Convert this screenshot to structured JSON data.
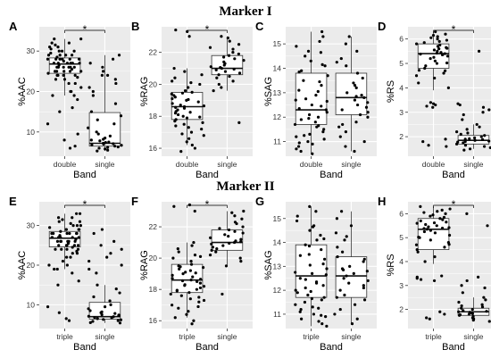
{
  "sections": [
    {
      "title": "Marker I"
    },
    {
      "title": "Marker II"
    }
  ],
  "chart_data": [
    {
      "panel": "A",
      "type": "box",
      "xlabel": "Band",
      "ylabel": "%AAC",
      "ylim": [
        4,
        36
      ],
      "yticks": [
        10,
        20,
        30
      ],
      "categories": [
        "double",
        "single"
      ],
      "significance": "*",
      "boxes": [
        {
          "q1": 24.5,
          "median": 26.8,
          "q3": 28.3,
          "lower": 19,
          "upper": 33
        },
        {
          "q1": 6.5,
          "median": 7.2,
          "q3": 14.8,
          "lower": 5.3,
          "upper": 29
        }
      ],
      "points": [
        [
          28,
          27,
          29,
          26,
          25,
          31,
          33,
          32,
          30,
          28,
          27,
          26,
          25,
          24,
          23,
          22,
          21,
          20,
          19,
          18,
          28,
          29,
          27,
          26,
          30,
          31,
          28,
          27,
          26,
          25,
          24,
          29,
          30,
          27,
          26,
          28,
          25,
          24,
          23,
          22,
          32,
          33,
          29,
          28,
          27,
          26,
          25,
          24,
          20,
          19,
          16,
          15,
          12,
          9.5,
          8,
          6.5,
          6,
          25.5,
          27.5,
          29.5,
          28.5,
          26.5,
          24.5,
          23.5,
          30.5,
          31.5
        ],
        [
          29,
          28,
          27,
          24,
          22,
          20,
          17,
          15,
          14,
          13,
          12,
          11,
          10,
          9,
          8.5,
          8,
          7.8,
          7.5,
          7.2,
          7,
          6.8,
          6.5,
          6.3,
          6,
          5.8,
          5.5,
          5.3,
          6.2,
          7.4,
          8.2,
          9.5,
          6.7,
          7.1,
          24,
          25,
          26,
          23,
          21,
          19
        ]
      ]
    },
    {
      "panel": "B",
      "type": "box",
      "xlabel": "Band",
      "ylabel": "%RAG",
      "ylim": [
        15.5,
        23.6
      ],
      "yticks": [
        16,
        18,
        20,
        22
      ],
      "categories": [
        "double",
        "single"
      ],
      "significance": "*",
      "boxes": [
        {
          "q1": 17.8,
          "median": 18.6,
          "q3": 19.5,
          "lower": 16.2,
          "upper": 21.0
        },
        {
          "q1": 20.6,
          "median": 21.0,
          "q3": 21.8,
          "lower": 19.6,
          "upper": 23.0
        }
      ],
      "points": [
        [
          23.4,
          23.3,
          23.0,
          21.0,
          20.8,
          20.6,
          20.4,
          20.2,
          20.0,
          19.8,
          19.6,
          19.5,
          19.4,
          19.3,
          19.2,
          19.1,
          19.0,
          18.9,
          18.8,
          18.7,
          18.6,
          18.5,
          18.4,
          18.3,
          18.2,
          18.1,
          18.0,
          17.9,
          17.8,
          17.7,
          17.6,
          17.5,
          17.4,
          17.3,
          17.2,
          17.0,
          16.8,
          16.6,
          16.4,
          16.2,
          16.0,
          15.8,
          18.65,
          18.55,
          19.05,
          18.25,
          17.95,
          19.45,
          20.1,
          16.9
        ],
        [
          23.0,
          22.9,
          22.7,
          22.5,
          22.3,
          22.2,
          22.0,
          21.9,
          21.8,
          21.7,
          21.6,
          21.5,
          21.4,
          21.3,
          21.2,
          21.1,
          21.0,
          20.9,
          20.8,
          20.7,
          20.6,
          20.5,
          20.4,
          20.2,
          20.0,
          19.8,
          19.6,
          17.6,
          21.05,
          20.95
        ]
      ]
    },
    {
      "panel": "C",
      "type": "box",
      "xlabel": "Band",
      "ylabel": "%SAG",
      "ylim": [
        10.4,
        15.7
      ],
      "yticks": [
        11,
        12,
        13,
        14,
        15
      ],
      "categories": [
        "double",
        "single"
      ],
      "significance": "",
      "boxes": [
        {
          "q1": 11.7,
          "median": 12.3,
          "q3": 13.8,
          "lower": 10.5,
          "upper": 15.5
        },
        {
          "q1": 12.1,
          "median": 12.8,
          "q3": 13.8,
          "lower": 10.6,
          "upper": 15.3
        }
      ],
      "points": [
        [
          15.5,
          15.3,
          15.1,
          14.9,
          14.7,
          14.5,
          14.3,
          14.1,
          13.9,
          13.7,
          13.5,
          13.3,
          13.1,
          12.9,
          12.7,
          12.5,
          12.3,
          12.2,
          12.1,
          12.0,
          11.9,
          11.8,
          11.7,
          11.6,
          11.5,
          11.4,
          11.3,
          11.2,
          11.1,
          11.0,
          10.9,
          10.8,
          10.7,
          10.6,
          10.5,
          12.35,
          12.45,
          13.05,
          13.85,
          14.15,
          11.95,
          11.25,
          12.75,
          13.45,
          14.65,
          10.95,
          11.65,
          12.65
        ],
        [
          15.3,
          15.0,
          14.7,
          14.4,
          14.1,
          13.8,
          13.6,
          13.4,
          13.2,
          13.0,
          12.9,
          12.8,
          12.7,
          12.6,
          12.5,
          12.4,
          12.3,
          12.2,
          12.1,
          12.0,
          11.8,
          11.6,
          11.4,
          11.2,
          11.0,
          10.8,
          10.6,
          13.3,
          12.85,
          14.25,
          11.7
        ]
      ]
    },
    {
      "panel": "D",
      "type": "box",
      "xlabel": "Band",
      "ylabel": "%RS",
      "ylim": [
        1.2,
        6.5
      ],
      "yticks": [
        2,
        3,
        4,
        5,
        6
      ],
      "categories": [
        "double",
        "single"
      ],
      "significance": "*",
      "boxes": [
        {
          "q1": 4.8,
          "median": 5.4,
          "q3": 5.8,
          "lower": 3.9,
          "upper": 6.3
        },
        {
          "q1": 1.7,
          "median": 1.85,
          "q3": 2.05,
          "lower": 1.5,
          "upper": 2.5
        }
      ],
      "points": [
        [
          6.3,
          6.2,
          6.15,
          6.1,
          6.05,
          6.0,
          5.95,
          5.9,
          5.85,
          5.8,
          5.75,
          5.7,
          5.65,
          5.6,
          5.55,
          5.5,
          5.45,
          5.4,
          5.35,
          5.3,
          5.25,
          5.2,
          5.1,
          5.0,
          4.9,
          4.8,
          4.7,
          4.6,
          4.5,
          4.4,
          4.2,
          4.0,
          3.4,
          3.35,
          3.3,
          3.25,
          3.2,
          1.9,
          1.8,
          1.65,
          1.6,
          5.42,
          5.38,
          5.62,
          5.02,
          4.72
        ],
        [
          5.5,
          3.35,
          3.3,
          3.2,
          3.1,
          3.0,
          2.9,
          2.7,
          2.5,
          2.4,
          2.3,
          2.2,
          2.1,
          2.05,
          2.0,
          1.95,
          1.9,
          1.88,
          1.85,
          1.82,
          1.8,
          1.75,
          1.7,
          1.65,
          1.6,
          1.55,
          1.5,
          1.45,
          1.92,
          1.78,
          2.15
        ]
      ]
    },
    {
      "panel": "E",
      "type": "box",
      "xlabel": "Band",
      "ylabel": "%AAC",
      "ylim": [
        4,
        36
      ],
      "yticks": [
        10,
        20,
        30
      ],
      "categories": [
        "triple",
        "single"
      ],
      "significance": "*",
      "boxes": [
        {
          "q1": 24.6,
          "median": 26.8,
          "q3": 28.5,
          "lower": 19,
          "upper": 33
        },
        {
          "q1": 6.4,
          "median": 7.0,
          "q3": 10.6,
          "lower": 5.4,
          "upper": 15
        }
      ],
      "points": [
        [
          28,
          27,
          29,
          26,
          25,
          31,
          33,
          32,
          30,
          28,
          27,
          26,
          25,
          24,
          23,
          22,
          21,
          20,
          19,
          18,
          28,
          29,
          27,
          26,
          30,
          31,
          28,
          27,
          26,
          25,
          24,
          29,
          30,
          27,
          26,
          28,
          25,
          24,
          23,
          22,
          32,
          33,
          29,
          28,
          27,
          26,
          25,
          24,
          20,
          19,
          16,
          15,
          9.5,
          8,
          6.5,
          6,
          25.5,
          27.5,
          29.5,
          28.5,
          26.5,
          24.5,
          23.5,
          30.5,
          31.5
        ],
        [
          29,
          28,
          26,
          25,
          22,
          20,
          18,
          15,
          14,
          13,
          12,
          11,
          10,
          9,
          8.5,
          8,
          7.8,
          7.5,
          7.2,
          7,
          6.8,
          6.5,
          6.3,
          6,
          5.8,
          5.5,
          5.4,
          6.2,
          7.4,
          8.2,
          9.5,
          6.7,
          7.1,
          24,
          23,
          21,
          19
        ]
      ]
    },
    {
      "panel": "F",
      "type": "box",
      "xlabel": "Band",
      "ylabel": "%RAG",
      "ylim": [
        15.5,
        23.6
      ],
      "yticks": [
        16,
        18,
        20,
        22
      ],
      "categories": [
        "triple",
        "single"
      ],
      "significance": "*",
      "boxes": [
        {
          "q1": 17.8,
          "median": 18.6,
          "q3": 19.6,
          "lower": 16.2,
          "upper": 21.0
        },
        {
          "q1": 20.5,
          "median": 21.0,
          "q3": 21.8,
          "lower": 19.5,
          "upper": 23.0
        }
      ],
      "points": [
        [
          23.4,
          23.3,
          23.0,
          21.0,
          20.8,
          20.6,
          20.4,
          20.2,
          20.0,
          19.8,
          19.6,
          19.5,
          19.4,
          19.3,
          19.2,
          19.1,
          19.0,
          18.9,
          18.8,
          18.7,
          18.6,
          18.5,
          18.4,
          18.3,
          18.2,
          18.1,
          18.0,
          17.9,
          17.8,
          17.7,
          17.6,
          17.5,
          17.4,
          17.3,
          17.2,
          17.0,
          16.8,
          16.6,
          16.4,
          16.2,
          16.0,
          15.8,
          18.65,
          18.55,
          19.05,
          18.25,
          17.95,
          19.45,
          20.1,
          16.9
        ],
        [
          23.0,
          22.9,
          22.7,
          22.5,
          22.3,
          22.2,
          22.0,
          21.9,
          21.8,
          21.7,
          21.6,
          21.5,
          21.4,
          21.3,
          21.2,
          21.1,
          21.0,
          20.9,
          20.8,
          20.7,
          20.6,
          20.5,
          20.4,
          20.2,
          20.0,
          19.8,
          19.5,
          17.7,
          21.05,
          20.95
        ]
      ]
    },
    {
      "panel": "G",
      "type": "box",
      "xlabel": "Band",
      "ylabel": "%SAG",
      "ylim": [
        10.4,
        15.7
      ],
      "yticks": [
        11,
        12,
        13,
        14,
        15
      ],
      "categories": [
        "triple",
        "single"
      ],
      "significance": "",
      "boxes": [
        {
          "q1": 11.7,
          "median": 12.6,
          "q3": 13.9,
          "lower": 10.5,
          "upper": 15.5
        },
        {
          "q1": 11.7,
          "median": 12.6,
          "q3": 13.4,
          "lower": 10.6,
          "upper": 15.3
        }
      ],
      "points": [
        [
          15.5,
          15.3,
          15.1,
          14.9,
          14.7,
          14.5,
          14.3,
          14.1,
          13.9,
          13.7,
          13.5,
          13.3,
          13.1,
          12.9,
          12.7,
          12.5,
          12.3,
          12.2,
          12.1,
          12.0,
          11.9,
          11.8,
          11.7,
          11.6,
          11.5,
          11.4,
          11.3,
          11.2,
          11.1,
          11.0,
          10.9,
          10.8,
          10.7,
          10.6,
          10.5,
          12.35,
          12.45,
          13.05,
          13.85,
          14.15,
          11.95,
          11.25,
          12.75,
          13.45,
          14.65,
          10.95,
          11.65,
          12.65
        ],
        [
          15.3,
          15.0,
          14.7,
          14.4,
          14.1,
          13.8,
          13.6,
          13.4,
          13.2,
          13.0,
          12.9,
          12.8,
          12.7,
          12.6,
          12.5,
          12.4,
          12.3,
          12.2,
          12.1,
          12.0,
          11.8,
          11.6,
          11.4,
          11.2,
          11.0,
          10.8,
          10.6,
          13.3,
          12.85,
          14.25,
          11.7
        ]
      ]
    },
    {
      "panel": "H",
      "type": "box",
      "xlabel": "Band",
      "ylabel": "%RS",
      "ylim": [
        1.2,
        6.5
      ],
      "yticks": [
        2,
        3,
        4,
        5,
        6
      ],
      "categories": [
        "triple",
        "single"
      ],
      "significance": "*",
      "boxes": [
        {
          "q1": 4.5,
          "median": 5.35,
          "q3": 5.8,
          "lower": 3.9,
          "upper": 6.3
        },
        {
          "q1": 1.75,
          "median": 1.9,
          "q3": 2.05,
          "lower": 1.5,
          "upper": 2.5
        }
      ],
      "points": [
        [
          6.3,
          6.2,
          6.15,
          6.1,
          6.05,
          6.0,
          5.95,
          5.9,
          5.85,
          5.8,
          5.75,
          5.7,
          5.65,
          5.6,
          5.55,
          5.5,
          5.45,
          5.4,
          5.35,
          5.3,
          5.25,
          5.2,
          5.1,
          5.0,
          4.9,
          4.8,
          4.7,
          4.6,
          4.5,
          4.4,
          4.2,
          4.0,
          3.4,
          3.35,
          3.3,
          3.25,
          3.2,
          1.9,
          1.8,
          1.65,
          1.6,
          5.42,
          5.38,
          5.62,
          5.02,
          4.72
        ],
        [
          6.0,
          5.5,
          3.35,
          3.2,
          3.0,
          2.9,
          2.7,
          2.5,
          2.4,
          2.3,
          2.2,
          2.1,
          2.05,
          2.0,
          1.95,
          1.9,
          1.88,
          1.85,
          1.82,
          1.8,
          1.75,
          1.7,
          1.65,
          1.6,
          1.55,
          1.5,
          1.92,
          1.78,
          2.15
        ]
      ]
    }
  ]
}
